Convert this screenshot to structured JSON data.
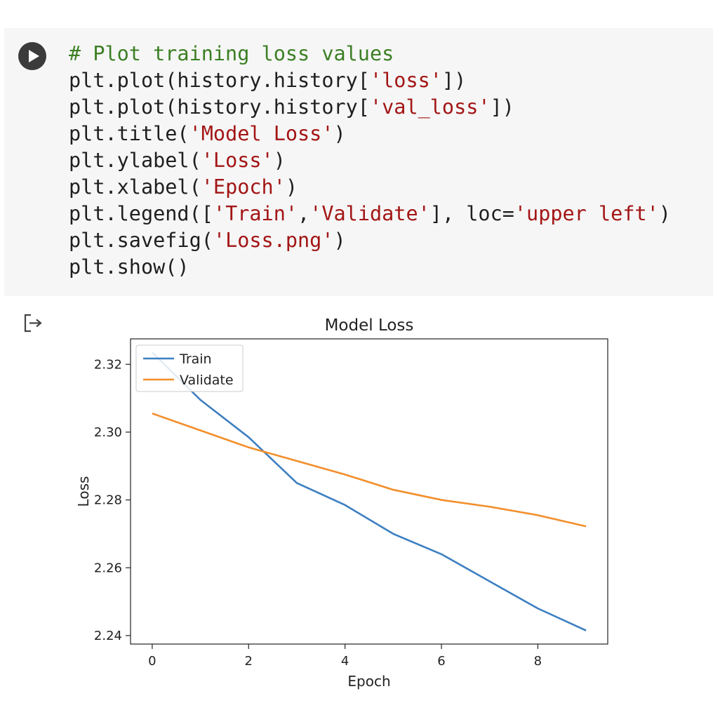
{
  "cell": {
    "code_lines": [
      [
        {
          "t": "# Plot training loss values",
          "c": "cm"
        }
      ],
      [
        {
          "t": "plt.plot(history.history[",
          "c": ""
        },
        {
          "t": "'loss'",
          "c": "st"
        },
        {
          "t": "])",
          "c": ""
        }
      ],
      [
        {
          "t": "plt.plot(history.history[",
          "c": ""
        },
        {
          "t": "'val_loss'",
          "c": "st"
        },
        {
          "t": "])",
          "c": ""
        }
      ],
      [
        {
          "t": "plt.title(",
          "c": ""
        },
        {
          "t": "'Model Loss'",
          "c": "st"
        },
        {
          "t": ")",
          "c": ""
        }
      ],
      [
        {
          "t": "plt.ylabel(",
          "c": ""
        },
        {
          "t": "'Loss'",
          "c": "st"
        },
        {
          "t": ")",
          "c": ""
        }
      ],
      [
        {
          "t": "plt.xlabel(",
          "c": ""
        },
        {
          "t": "'Epoch'",
          "c": "st"
        },
        {
          "t": ")",
          "c": ""
        }
      ],
      [
        {
          "t": "plt.legend([",
          "c": ""
        },
        {
          "t": "'Train'",
          "c": "st"
        },
        {
          "t": ",",
          "c": ""
        },
        {
          "t": "'Validate'",
          "c": "st"
        },
        {
          "t": "], loc=",
          "c": ""
        },
        {
          "t": "'upper left'",
          "c": "st"
        },
        {
          "t": ")",
          "c": ""
        }
      ],
      [
        {
          "t": "plt.savefig(",
          "c": ""
        },
        {
          "t": "'Loss.png'",
          "c": "st"
        },
        {
          "t": ")",
          "c": ""
        }
      ],
      [
        {
          "t": "plt.show()",
          "c": ""
        }
      ]
    ],
    "run_icon": "play-icon",
    "output_icon": "output-arrow-icon",
    "colors": {
      "comment": "#3c7f24",
      "string": "#a31515",
      "cell_bg": "#f6f6f6",
      "run_button": "#3b3b3b"
    }
  },
  "chart_data": {
    "type": "line",
    "title": "Model Loss",
    "xlabel": "Epoch",
    "ylabel": "Loss",
    "x": [
      0,
      1,
      2,
      3,
      4,
      5,
      6,
      7,
      8,
      9
    ],
    "xticks": [
      "0",
      "2",
      "4",
      "6",
      "8"
    ],
    "yticks": [
      "2.24",
      "2.26",
      "2.28",
      "2.30",
      "2.32"
    ],
    "xlim": [
      -0.45,
      9.45
    ],
    "ylim": [
      2.2375,
      2.3275
    ],
    "legend_position": "upper left",
    "grid": false,
    "series": [
      {
        "name": "Train",
        "color": "#3d7fc1",
        "values": [
          2.3235,
          2.3095,
          2.2985,
          2.285,
          2.2785,
          2.27,
          2.264,
          2.256,
          2.248,
          2.2415
        ]
      },
      {
        "name": "Validate",
        "color": "#f28e2b",
        "values": [
          2.3055,
          2.3005,
          2.2955,
          2.2915,
          2.2875,
          2.283,
          2.28,
          2.278,
          2.2755,
          2.2722
        ]
      }
    ]
  }
}
